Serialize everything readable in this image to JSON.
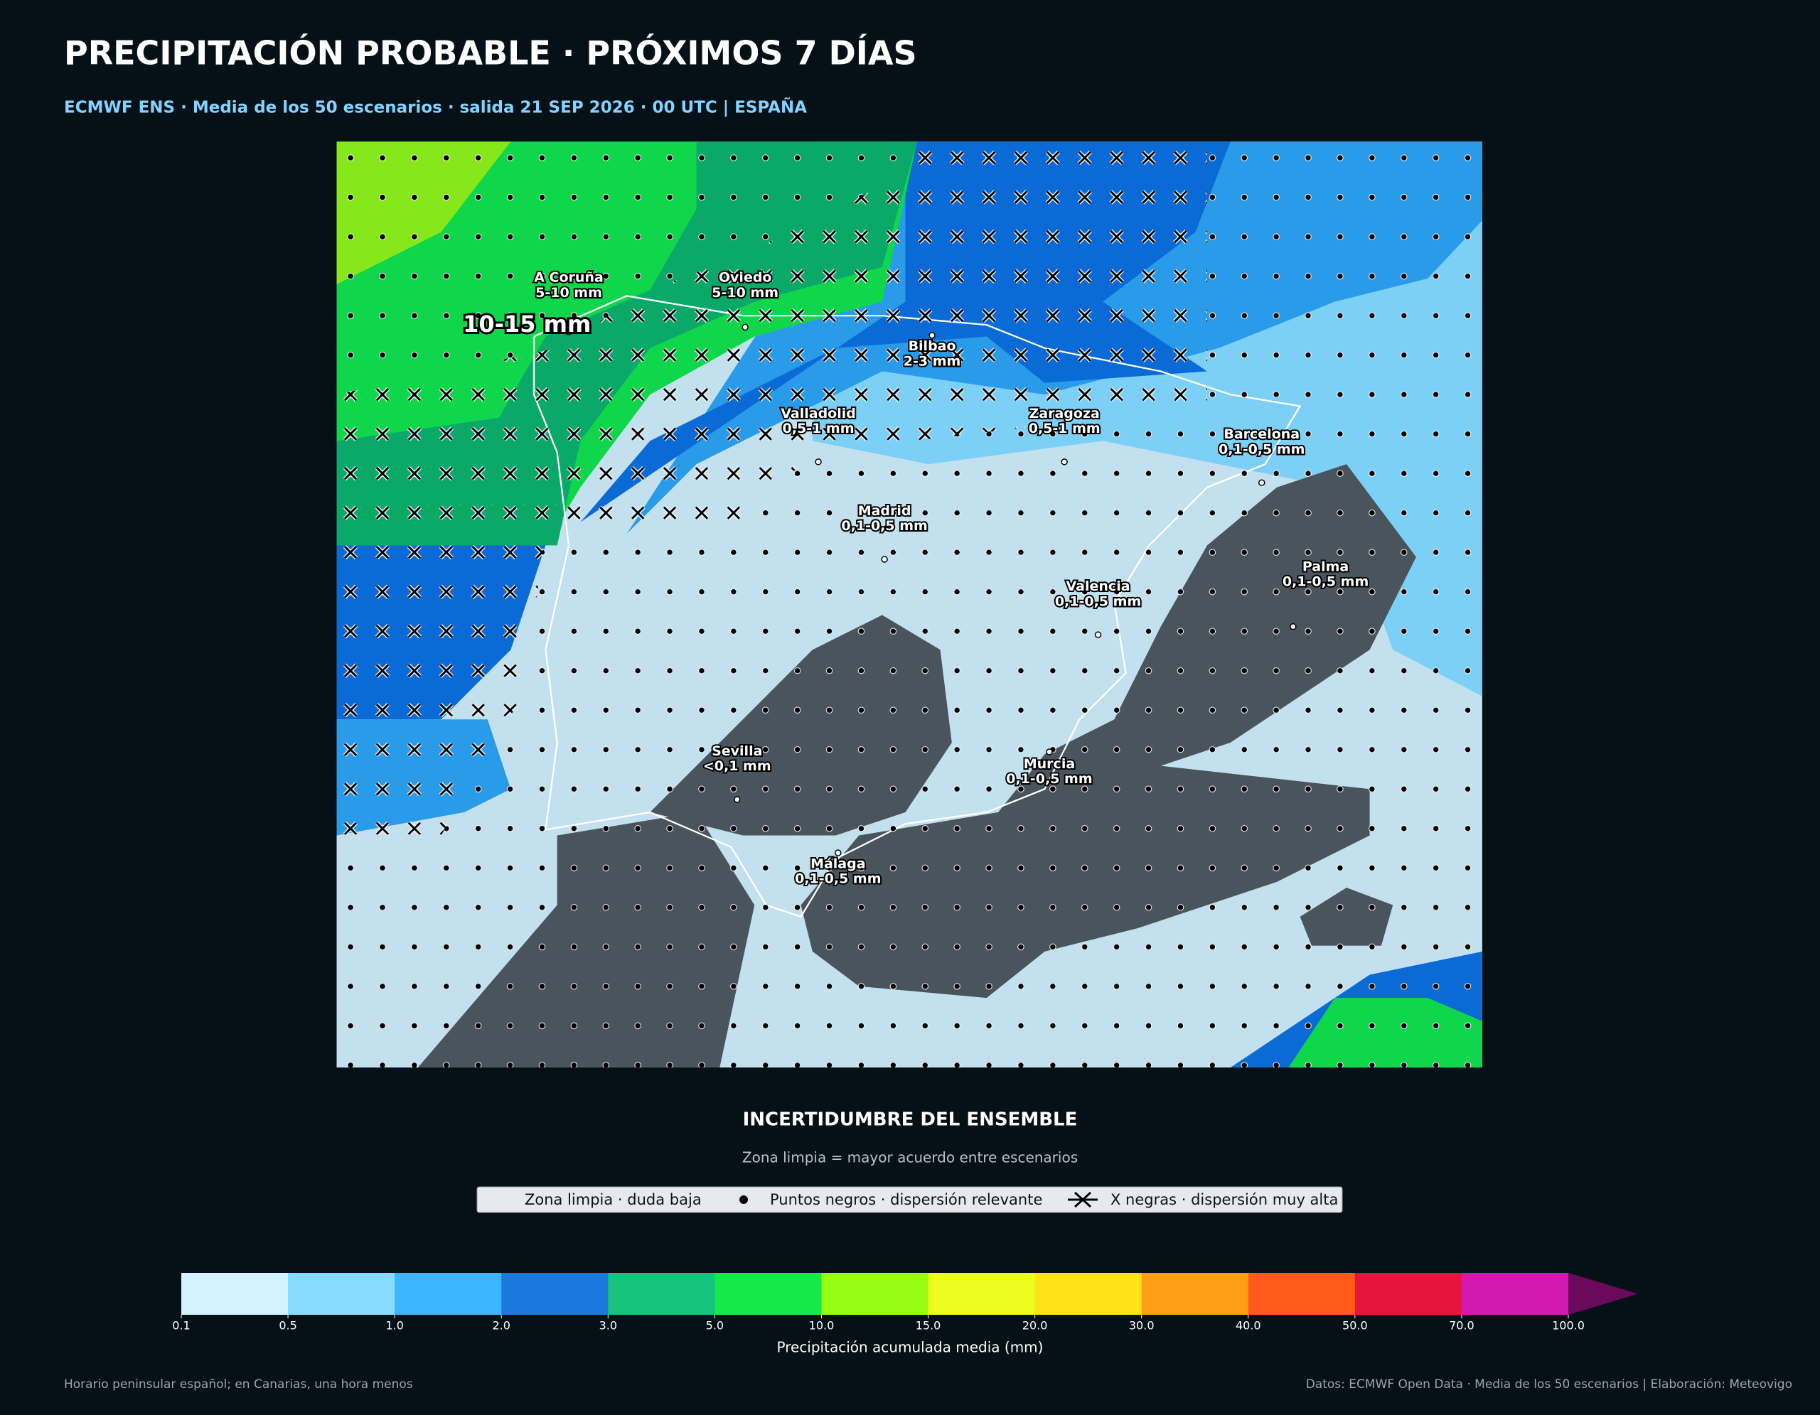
{
  "header": {
    "title": "PRECIPITACIÓN PROBABLE · PRÓXIMOS 7 DÍAS",
    "subtitle": "ECMWF ENS · Media de los 50 escenarios · salida 21 SEP 2026 · 00 UTC | ESPAÑA"
  },
  "map": {
    "highlight": "10-15 mm",
    "cities": [
      {
        "name": "A Coruña",
        "value": "5-10 mm"
      },
      {
        "name": "Oviedo",
        "value": "5-10 mm"
      },
      {
        "name": "Bilbao",
        "value": "2-3 mm"
      },
      {
        "name": "Valladolid",
        "value": "0,5-1 mm"
      },
      {
        "name": "Zaragoza",
        "value": "0,5-1 mm"
      },
      {
        "name": "Barcelona",
        "value": "0,1-0,5 mm"
      },
      {
        "name": "Madrid",
        "value": "0,1-0,5 mm"
      },
      {
        "name": "Valencia",
        "value": "0,1-0,5 mm"
      },
      {
        "name": "Palma",
        "value": "0,1-0,5 mm"
      },
      {
        "name": "Sevilla",
        "value": "<0,1 mm"
      },
      {
        "name": "Murcia",
        "value": "0,1-0,5 mm"
      },
      {
        "name": "Málaga",
        "value": "0,1-0,5 mm"
      }
    ]
  },
  "uncertainty": {
    "title": "INCERTIDUMBRE DEL ENSEMBLE",
    "subtitle": "Zona limpia = mayor acuerdo entre escenarios",
    "items": [
      "Zona limpia · duda baja",
      "Puntos negros · dispersión relevante",
      "X negras · dispersión muy alta"
    ]
  },
  "colorbar": {
    "label": "Precipitación acumulada media (mm)",
    "ticks": [
      {
        "value": 0.1,
        "label": "0.1"
      },
      {
        "value": 0.5,
        "label": "0.5"
      },
      {
        "value": 1,
        "label": "1.0"
      },
      {
        "value": 2,
        "label": "2.0"
      },
      {
        "value": 3,
        "label": "3.0"
      },
      {
        "value": 5,
        "label": "5.0"
      },
      {
        "value": 10,
        "label": "10.0"
      },
      {
        "value": 15,
        "label": "15.0"
      },
      {
        "value": 20,
        "label": "20.0"
      },
      {
        "value": 30,
        "label": "30.0"
      },
      {
        "value": 40,
        "label": "40.0"
      },
      {
        "value": 50,
        "label": "50.0"
      },
      {
        "value": 70,
        "label": "70.0"
      },
      {
        "value": 100,
        "label": "100.0"
      }
    ],
    "colors": [
      "#d4f1ff",
      "#85dcff",
      "#3db4ff",
      "#1a78de",
      "#16c47e",
      "#16e84a",
      "#96fc14",
      "#ecfc1e",
      "#ffe21a",
      "#ff9e16",
      "#ff5a19",
      "#e5163e",
      "#d21ab0"
    ],
    "extend_color": "#6b0a5c"
  },
  "footer": {
    "left": "Horario peninsular español; en Canarias, una hora menos",
    "right": "Datos: ECMWF Open Data · Media de los 50 escenarios | Elaboración: Meteovigo"
  }
}
